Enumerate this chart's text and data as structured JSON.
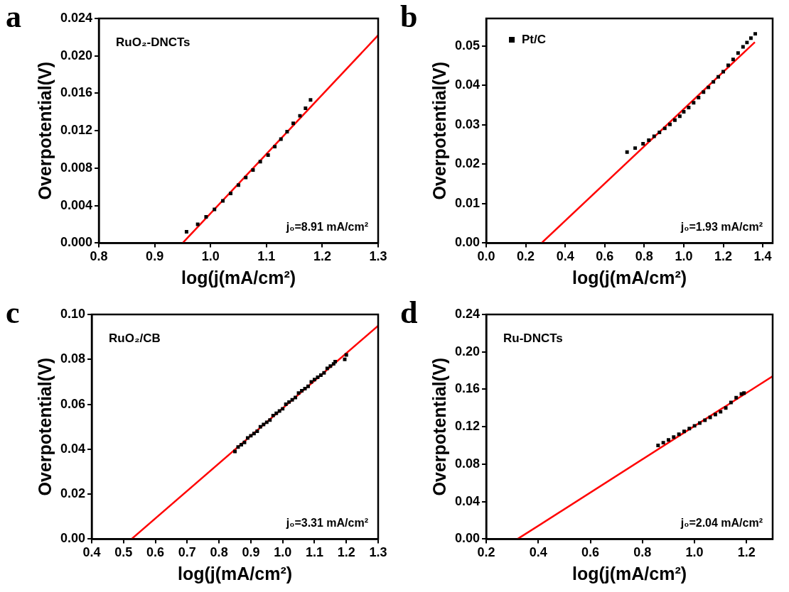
{
  "chart_data": [
    {
      "type": "scatter",
      "title": "a",
      "xlabel": "log(j(mA/cm²)",
      "ylabel": "Overpotential(V)",
      "annotations": [
        "RuO₂-DNCTs",
        "j₀=8.91 mA/cm²"
      ],
      "xlim": [
        0.8,
        1.3
      ],
      "xticks": [
        {
          "value": 0.8,
          "label": "0.8"
        },
        {
          "value": 0.9,
          "label": "0.9"
        },
        {
          "value": 1.0,
          "label": "1.0"
        },
        {
          "value": 1.1,
          "label": "1.1"
        },
        {
          "value": 1.2,
          "label": "1.2"
        },
        {
          "value": 1.3,
          "label": "1.3"
        }
      ],
      "ylim": [
        0,
        0.024
      ],
      "yticks": [
        {
          "value": 0,
          "label": "0.000"
        },
        {
          "value": 0.004,
          "label": "0.004"
        },
        {
          "value": 0.008,
          "label": "0.008"
        },
        {
          "value": 0.012,
          "label": "0.012"
        },
        {
          "value": 0.016,
          "label": "0.016"
        },
        {
          "value": 0.02,
          "label": "0.020"
        },
        {
          "value": 0.024,
          "label": "0.024"
        }
      ],
      "series": [
        {
          "color": "#000000",
          "marker": "square",
          "x": [
            0.957,
            0.977,
            0.992,
            1.007,
            1.022,
            1.036,
            1.05,
            1.063,
            1.076,
            1.089,
            1.103,
            1.115,
            1.126,
            1.137,
            1.148,
            1.16,
            1.17,
            1.179
          ],
          "values": [
            0.0012,
            0.002,
            0.0028,
            0.0036,
            0.0045,
            0.0053,
            0.0062,
            0.007,
            0.0078,
            0.0087,
            0.0094,
            0.0103,
            0.0111,
            0.0119,
            0.0128,
            0.0136,
            0.0144,
            0.0153
          ]
        },
        {
          "type": "line",
          "marker": "none",
          "color": "#ff0000",
          "x": [
            0.95,
            1.3
          ],
          "values": [
            0,
            0.0222
          ]
        }
      ]
    },
    {
      "type": "scatter",
      "title": "b",
      "xlabel": "log(j(mA/cm²)",
      "ylabel": "Overpotential(V)",
      "legend": "top left",
      "annotations": [
        "j₀=1.93 mA/cm²"
      ],
      "xlim": [
        0,
        1.45
      ],
      "xticks": [
        {
          "value": 0,
          "label": "0.0"
        },
        {
          "value": 0.2,
          "label": "0.2"
        },
        {
          "value": 0.4,
          "label": "0.4"
        },
        {
          "value": 0.6,
          "label": "0.6"
        },
        {
          "value": 0.8,
          "label": "0.8"
        },
        {
          "value": 1.0,
          "label": "1.0"
        },
        {
          "value": 1.2,
          "label": "1.2"
        },
        {
          "value": 1.4,
          "label": "1.4"
        }
      ],
      "ylim": [
        0,
        0.057
      ],
      "yticks": [
        {
          "value": 0,
          "label": "0.00"
        },
        {
          "value": 0.01,
          "label": "0.01"
        },
        {
          "value": 0.02,
          "label": "0.02"
        },
        {
          "value": 0.03,
          "label": "0.03"
        },
        {
          "value": 0.04,
          "label": "0.04"
        },
        {
          "value": 0.05,
          "label": "0.05"
        }
      ],
      "series": [
        {
          "name": "Pt/C",
          "color": "#000000",
          "marker": "square",
          "x": [
            0.713,
            0.754,
            0.794,
            0.823,
            0.85,
            0.877,
            0.904,
            0.93,
            0.955,
            0.98,
            1.0,
            1.025,
            1.05,
            1.075,
            1.1,
            1.125,
            1.15,
            1.175,
            1.2,
            1.225,
            1.25,
            1.275,
            1.3,
            1.32,
            1.34,
            1.362
          ],
          "values": [
            0.0231,
            0.0241,
            0.0252,
            0.0261,
            0.0271,
            0.0281,
            0.0291,
            0.0301,
            0.0312,
            0.0322,
            0.0333,
            0.0344,
            0.0356,
            0.0369,
            0.0383,
            0.0395,
            0.0409,
            0.0422,
            0.0435,
            0.0451,
            0.0466,
            0.0482,
            0.0498,
            0.0509,
            0.052,
            0.0531
          ]
        },
        {
          "type": "line",
          "marker": "none",
          "color": "#ff0000",
          "x": [
            0.28,
            1.36
          ],
          "values": [
            0,
            0.051
          ]
        }
      ]
    },
    {
      "type": "scatter",
      "title": "c",
      "xlabel": "log(j(mA/cm²)",
      "ylabel": "Overpotential(V)",
      "annotations": [
        "RuO₂/CB",
        "j₀=3.31 mA/cm²"
      ],
      "xlim": [
        0.4,
        1.3
      ],
      "xticks": [
        {
          "value": 0.4,
          "label": "0.4"
        },
        {
          "value": 0.5,
          "label": "0.5"
        },
        {
          "value": 0.6,
          "label": "0.6"
        },
        {
          "value": 0.7,
          "label": "0.7"
        },
        {
          "value": 0.8,
          "label": "0.8"
        },
        {
          "value": 0.9,
          "label": "0.9"
        },
        {
          "value": 1.0,
          "label": "1.0"
        },
        {
          "value": 1.1,
          "label": "1.1"
        },
        {
          "value": 1.2,
          "label": "1.2"
        },
        {
          "value": 1.3,
          "label": "1.3"
        }
      ],
      "ylim": [
        0,
        0.1
      ],
      "yticks": [
        {
          "value": 0,
          "label": "0.00"
        },
        {
          "value": 0.02,
          "label": "0.02"
        },
        {
          "value": 0.04,
          "label": "0.04"
        },
        {
          "value": 0.06,
          "label": "0.06"
        },
        {
          "value": 0.08,
          "label": "0.08"
        },
        {
          "value": 0.1,
          "label": "0.10"
        }
      ],
      "series": [
        {
          "color": "#000000",
          "marker": "square",
          "x": [
            0.85,
            0.86,
            0.87,
            0.88,
            0.89,
            0.9,
            0.91,
            0.92,
            0.93,
            0.94,
            0.95,
            0.96,
            0.97,
            0.98,
            0.99,
            1.0,
            1.01,
            1.02,
            1.03,
            1.04,
            1.05,
            1.06,
            1.07,
            1.08,
            1.09,
            1.1,
            1.11,
            1.12,
            1.13,
            1.14,
            1.15,
            1.16,
            1.165,
            1.195,
            1.2
          ],
          "values": [
            0.039,
            0.041,
            0.042,
            0.043,
            0.045,
            0.046,
            0.047,
            0.048,
            0.05,
            0.051,
            0.052,
            0.053,
            0.055,
            0.056,
            0.057,
            0.058,
            0.06,
            0.061,
            0.062,
            0.063,
            0.065,
            0.066,
            0.067,
            0.068,
            0.07,
            0.071,
            0.072,
            0.073,
            0.074,
            0.076,
            0.077,
            0.078,
            0.079,
            0.08,
            0.082
          ]
        },
        {
          "type": "line",
          "marker": "none",
          "color": "#ff0000",
          "x": [
            0.525,
            1.3
          ],
          "values": [
            0,
            0.095
          ]
        }
      ]
    },
    {
      "type": "scatter",
      "title": "d",
      "xlabel": "log(j(mA/cm²)",
      "ylabel": "Overpotential(V)",
      "annotations": [
        "Ru-DNCTs",
        "j₀=2.04 mA/cm²"
      ],
      "xlim": [
        0.2,
        1.3
      ],
      "xticks": [
        {
          "value": 0.2,
          "label": "0.2"
        },
        {
          "value": 0.4,
          "label": "0.4"
        },
        {
          "value": 0.6,
          "label": "0.6"
        },
        {
          "value": 0.8,
          "label": "0.8"
        },
        {
          "value": 1.0,
          "label": "1.0"
        },
        {
          "value": 1.2,
          "label": "1.2"
        }
      ],
      "ylim": [
        0,
        0.24
      ],
      "yticks": [
        {
          "value": 0,
          "label": "0.00"
        },
        {
          "value": 0.04,
          "label": "0.04"
        },
        {
          "value": 0.08,
          "label": "0.08"
        },
        {
          "value": 0.12,
          "label": "0.12"
        },
        {
          "value": 0.16,
          "label": "0.16"
        },
        {
          "value": 0.2,
          "label": "0.20"
        },
        {
          "value": 0.24,
          "label": "0.24"
        }
      ],
      "series": [
        {
          "color": "#000000",
          "marker": "square",
          "x": [
            0.86,
            0.88,
            0.9,
            0.92,
            0.94,
            0.96,
            0.98,
            1.0,
            1.02,
            1.04,
            1.06,
            1.08,
            1.1,
            1.12,
            1.14,
            1.16,
            1.18,
            1.19
          ],
          "values": [
            0.1,
            0.103,
            0.106,
            0.109,
            0.112,
            0.115,
            0.118,
            0.121,
            0.124,
            0.127,
            0.13,
            0.133,
            0.136,
            0.14,
            0.146,
            0.151,
            0.155,
            0.156
          ]
        },
        {
          "type": "line",
          "marker": "none",
          "color": "#ff0000",
          "x": [
            0.32,
            1.3
          ],
          "values": [
            0,
            0.174
          ]
        }
      ]
    }
  ]
}
